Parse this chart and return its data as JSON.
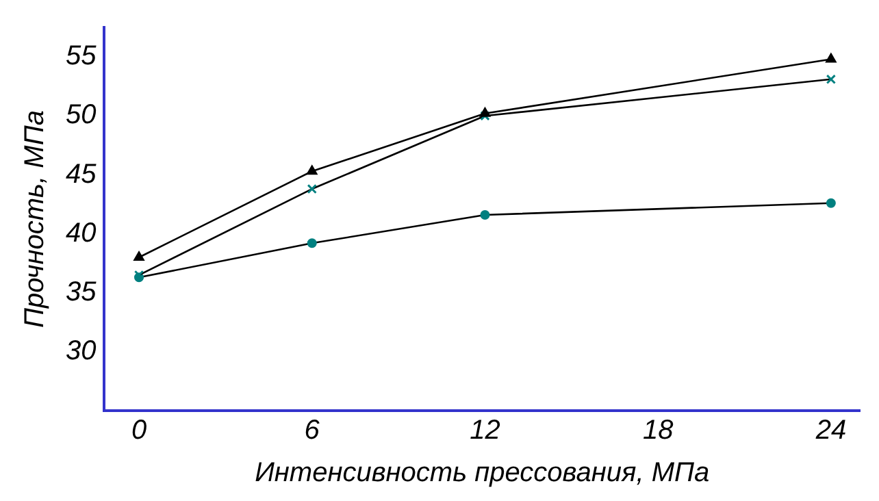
{
  "chart_data": {
    "type": "line",
    "xlabel": "Интенсивность прессования, МПа",
    "ylabel": "Прочность, МПа",
    "x": [
      0,
      6,
      12,
      24
    ],
    "xlim": [
      -1.2,
      25
    ],
    "xticks": [
      0,
      6,
      12,
      18,
      24
    ],
    "ylim": [
      25,
      57.5
    ],
    "yticks": [
      30,
      35,
      40,
      45,
      50,
      55
    ],
    "grid": false,
    "legend": false,
    "line_style": "solid",
    "series": [
      {
        "color": "#000000",
        "marker": "triangle",
        "values": [
          38.0,
          45.3,
          50.2,
          54.8
        ]
      },
      {
        "color": "#008080",
        "marker": "cross",
        "values": [
          36.5,
          43.8,
          50.0,
          53.1
        ]
      },
      {
        "color": "#008080",
        "marker": "circle",
        "values": [
          36.3,
          39.2,
          41.6,
          42.6
        ]
      }
    ]
  }
}
